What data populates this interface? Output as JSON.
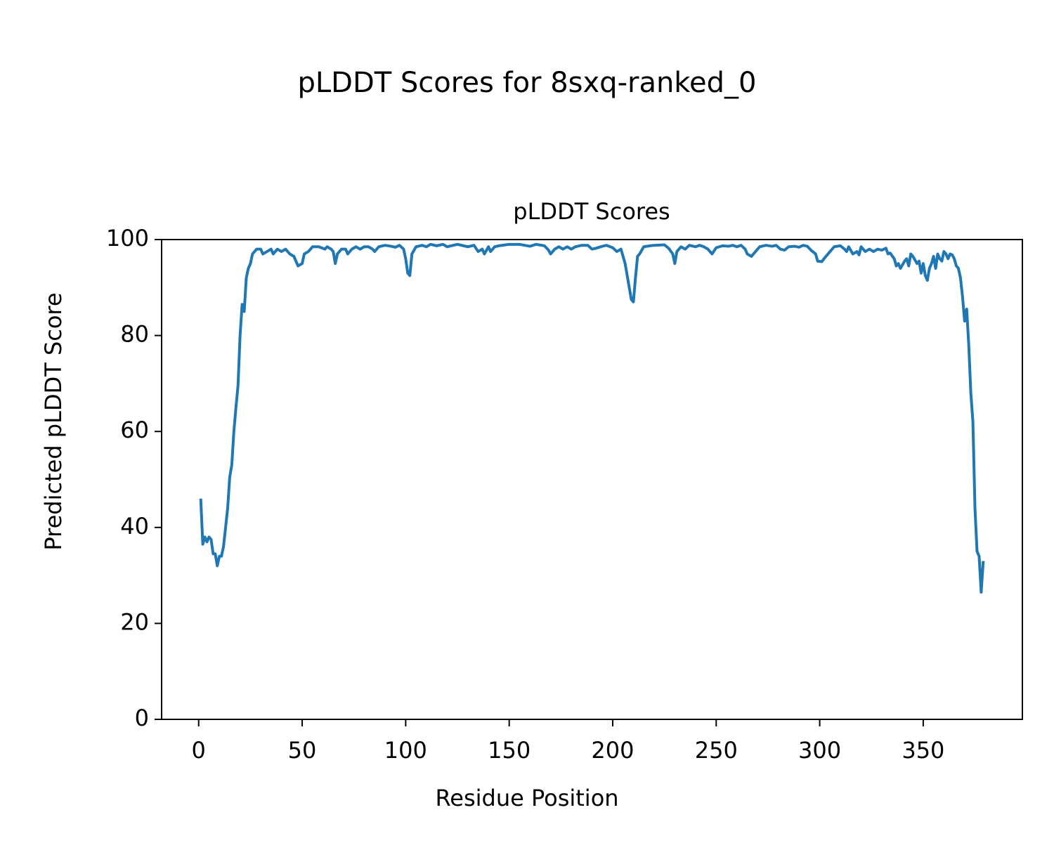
{
  "chart_data": {
    "type": "line",
    "suptitle": "pLDDT Scores for 8sxq-ranked_0",
    "title": "pLDDT Scores",
    "xlabel": "Residue Position",
    "ylabel": "Predicted pLDDT Score",
    "color": "#1f77b4",
    "grid": false,
    "xlim": [
      -17.9,
      397.9
    ],
    "ylim": [
      0,
      100
    ],
    "xticks": [
      0,
      50,
      100,
      150,
      200,
      250,
      300,
      350
    ],
    "yticks": [
      0,
      20,
      40,
      60,
      80,
      100
    ],
    "x": [
      1,
      2,
      3,
      4,
      5,
      6,
      7,
      8,
      9,
      10,
      11,
      12,
      13,
      14,
      15,
      16,
      17,
      18,
      19,
      20,
      21,
      22,
      23,
      24,
      25,
      26,
      28,
      30,
      31,
      33,
      35,
      36,
      38,
      40,
      42,
      44,
      46,
      48,
      50,
      51,
      53,
      55,
      58,
      61,
      62,
      64,
      65,
      66,
      67,
      69,
      71,
      72,
      74,
      76,
      78,
      80,
      82,
      84,
      85,
      87,
      90,
      93,
      95,
      97,
      99,
      100,
      101,
      102,
      103,
      105,
      108,
      110,
      112,
      115,
      118,
      120,
      125,
      130,
      133,
      135,
      137,
      138,
      140,
      141,
      143,
      145,
      150,
      155,
      160,
      163,
      167,
      169,
      170,
      172,
      174,
      176,
      178,
      180,
      182,
      185,
      188,
      190,
      192,
      195,
      197,
      200,
      202,
      204,
      206,
      208,
      209,
      210,
      211,
      212,
      213,
      215,
      218,
      220,
      225,
      227,
      229,
      230,
      231,
      233,
      235,
      237,
      240,
      242,
      244,
      246,
      248,
      250,
      253,
      256,
      258,
      260,
      262,
      264,
      265,
      267,
      269,
      271,
      274,
      277,
      279,
      281,
      283,
      285,
      288,
      290,
      292,
      294,
      296,
      298,
      299,
      301,
      303,
      305,
      307,
      310,
      312,
      313,
      314,
      316,
      318,
      319,
      320,
      322,
      324,
      326,
      328,
      330,
      332,
      333,
      334,
      336,
      337,
      338,
      339,
      341,
      342,
      343,
      344,
      345,
      347,
      348,
      349,
      350,
      351,
      352,
      353,
      354,
      355,
      356,
      357,
      358,
      359,
      360,
      361,
      362,
      363,
      364,
      365,
      366,
      367,
      368,
      369,
      370,
      371,
      372,
      373,
      374,
      375,
      376,
      377,
      378,
      379
    ],
    "values": [
      46,
      36.5,
      38,
      37,
      38,
      37.5,
      34.5,
      34.5,
      32,
      34,
      34,
      36,
      40,
      44,
      50.5,
      53,
      60,
      65,
      69.5,
      80,
      86.5,
      85,
      92,
      94,
      95,
      97,
      98,
      98,
      97,
      97.5,
      98,
      97,
      98,
      97.5,
      98,
      97,
      96.5,
      94.5,
      95,
      97,
      97.5,
      98.5,
      98.5,
      98,
      98.5,
      98,
      97.5,
      95,
      97,
      98,
      98,
      97,
      98,
      98.5,
      98,
      98.5,
      98.5,
      98,
      97.5,
      98.5,
      98.8,
      98.6,
      98.4,
      98.8,
      98,
      96,
      93,
      92.5,
      97,
      98.5,
      98.8,
      98.5,
      99,
      98.7,
      99,
      98.5,
      99,
      98.5,
      98.8,
      97.5,
      98,
      97,
      98.5,
      97.5,
      98.5,
      98.7,
      99,
      99,
      98.6,
      99,
      98.7,
      97.8,
      97,
      98,
      98.5,
      98,
      98.5,
      98,
      98.5,
      98.8,
      98.8,
      98,
      98.2,
      98.6,
      98.8,
      98.3,
      97.5,
      98,
      95,
      90,
      87.5,
      87,
      92,
      96.5,
      97,
      98.5,
      98.7,
      98.8,
      98.9,
      98.2,
      97,
      95,
      97.5,
      98.5,
      98,
      98.8,
      98.5,
      98.8,
      98.5,
      98,
      97,
      98.3,
      98.7,
      98.6,
      98.8,
      98.5,
      98.8,
      98,
      97,
      96.5,
      97.5,
      98.5,
      98.8,
      98.6,
      98.8,
      98,
      97.8,
      98.5,
      98.6,
      98.4,
      98.8,
      98.6,
      97.7,
      97,
      95.5,
      95.4,
      96.5,
      97.5,
      98.5,
      98.7,
      98,
      97.5,
      98.5,
      97,
      97.5,
      96.8,
      98.5,
      97.5,
      98,
      97.5,
      98,
      97.8,
      98.2,
      97,
      97.2,
      96,
      94.5,
      95,
      94,
      95.5,
      96,
      94.5,
      97,
      96.5,
      95,
      95.5,
      93,
      95,
      92.5,
      91.5,
      94,
      95,
      96.5,
      94,
      97,
      96,
      95.5,
      97.5,
      97,
      96,
      97,
      96.8,
      96,
      94.5,
      94,
      92,
      88,
      83,
      85.5,
      78,
      68,
      62,
      44,
      35,
      34,
      26.5,
      33
    ]
  }
}
